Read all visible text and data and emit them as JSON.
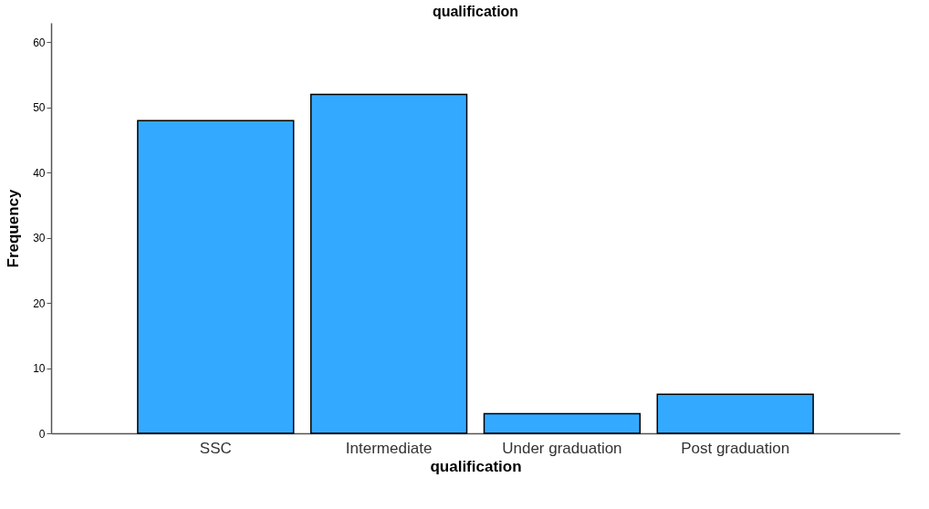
{
  "chart_data": {
    "type": "bar",
    "title": "qualification",
    "xlabel": "qualification",
    "ylabel": "Frequency",
    "categories": [
      "SSC",
      "Intermediate",
      "Under graduation",
      "Post graduation"
    ],
    "values": [
      48,
      52,
      3,
      6
    ],
    "color": "#33aaff",
    "ylim": [
      0,
      63
    ],
    "yticks": [
      0,
      10,
      20,
      30,
      40,
      50,
      60
    ],
    "grid": false
  }
}
